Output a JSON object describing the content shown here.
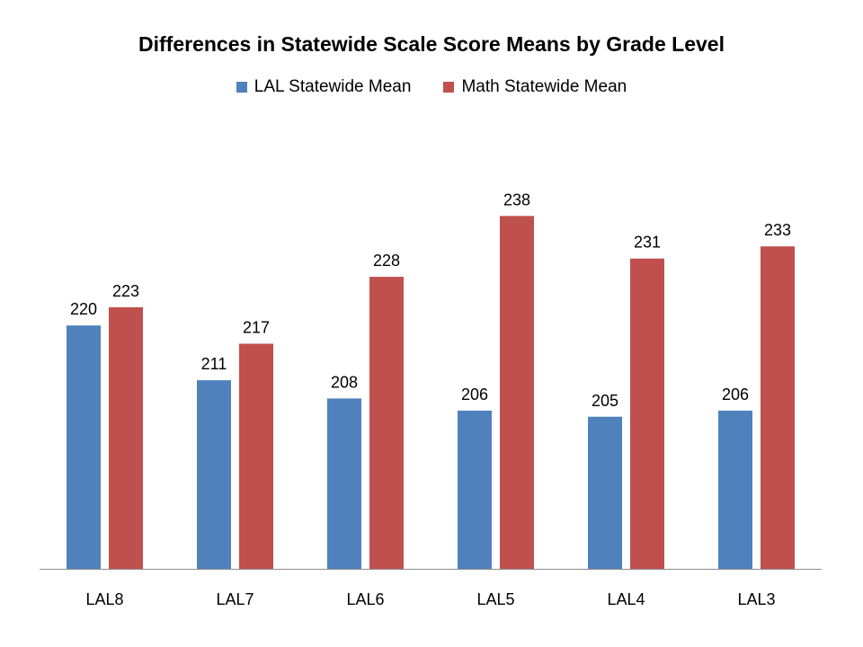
{
  "chart_data": {
    "type": "bar",
    "title": "Differences in Statewide Scale Score Means by Grade Level",
    "categories": [
      "LAL8",
      "LAL7",
      "LAL6",
      "LAL5",
      "LAL4",
      "LAL3"
    ],
    "series": [
      {
        "name": "LAL Statewide Mean",
        "color": "#4F81BD",
        "values": [
          220,
          211,
          208,
          206,
          205,
          206
        ]
      },
      {
        "name": "Math Statewide Mean",
        "color": "#C0504D",
        "values": [
          223,
          217,
          228,
          238,
          231,
          233
        ]
      }
    ],
    "xlabel": "",
    "ylabel": "",
    "ylim": [
      180,
      240
    ],
    "grid": false,
    "legend_position": "top"
  }
}
